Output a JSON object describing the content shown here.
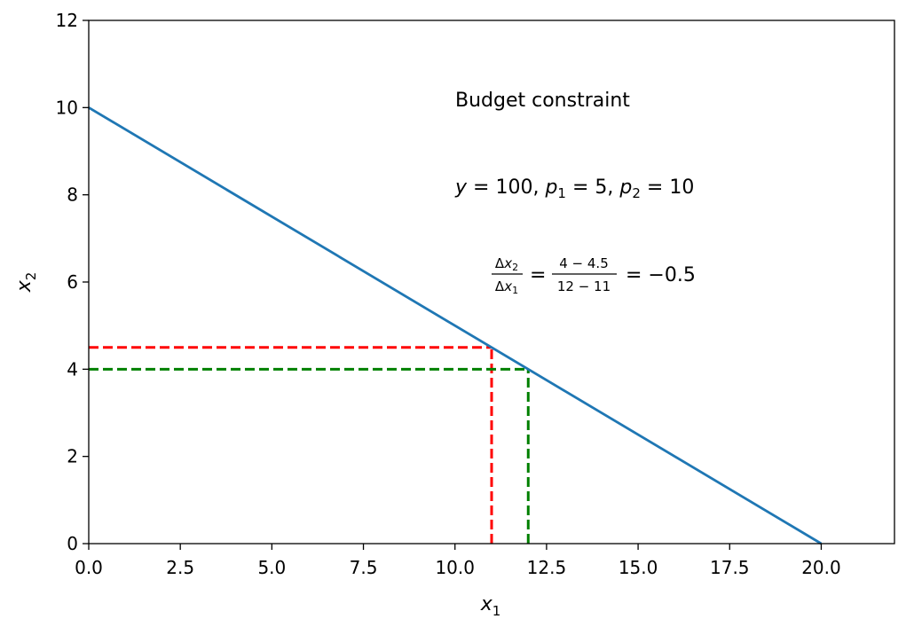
{
  "chart_data": {
    "type": "line",
    "title": "",
    "xlabel": "x",
    "xlabel_sub": "1",
    "ylabel": "x",
    "ylabel_sub": "2",
    "xlim": [
      0,
      22
    ],
    "ylim": [
      0,
      12
    ],
    "xticks": [
      0.0,
      2.5,
      5.0,
      7.5,
      10.0,
      12.5,
      15.0,
      17.5,
      20.0
    ],
    "xtick_labels": [
      "0.0",
      "2.5",
      "5.0",
      "7.5",
      "10.0",
      "12.5",
      "15.0",
      "17.5",
      "20.0"
    ],
    "yticks": [
      0,
      2,
      4,
      6,
      8,
      10,
      12
    ],
    "ytick_labels": [
      "0",
      "2",
      "4",
      "6",
      "8",
      "10",
      "12"
    ],
    "grid": false,
    "series": [
      {
        "color": "#1f77b4",
        "style": "solid",
        "x": [
          0,
          20
        ],
        "y": [
          10,
          0
        ]
      }
    ],
    "reference_lines": [
      {
        "color": "#ff0000",
        "style": "dashed",
        "x": [
          0,
          11
        ],
        "y": [
          4.5,
          4.5
        ]
      },
      {
        "color": "#ff0000",
        "style": "dashed",
        "x": [
          11,
          11
        ],
        "y": [
          0,
          4.5
        ]
      },
      {
        "color": "#008000",
        "style": "dashed",
        "x": [
          0,
          12
        ],
        "y": [
          4,
          4
        ]
      },
      {
        "color": "#008000",
        "style": "dashed",
        "x": [
          12,
          12
        ],
        "y": [
          0,
          4
        ]
      }
    ],
    "annotations": {
      "heading": "Budget constraint",
      "params": {
        "y_sym": "y",
        "y_val": "100",
        "p1_sym": "p",
        "p1_sub": "1",
        "p1_val": "5",
        "p2_sym": "p",
        "p2_sub": "2",
        "p2_val": "10"
      },
      "slope": {
        "num_delta": "Δ",
        "num_var": "x",
        "num_sub": "2",
        "den_delta": "Δ",
        "den_var": "x",
        "den_sub": "1",
        "frac_num": "4 − 4.5",
        "frac_den": "12 − 11",
        "result": "= −0.5"
      }
    }
  }
}
